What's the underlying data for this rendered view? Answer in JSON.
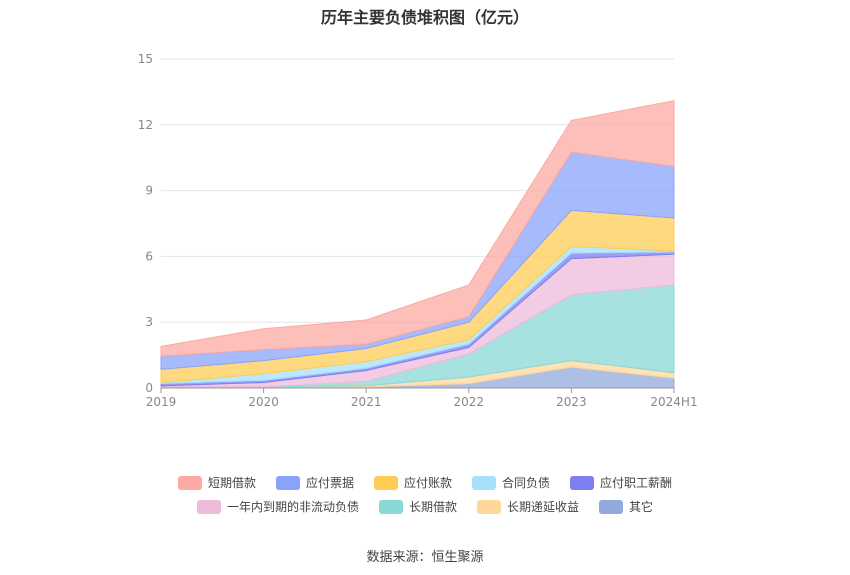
{
  "chart_data": {
    "type": "area",
    "stacked": true,
    "title": "历年主要负债堆积图（亿元）",
    "categories": [
      "2019",
      "2020",
      "2021",
      "2022",
      "2023",
      "2024H1"
    ],
    "ylim": [
      0,
      15
    ],
    "yticks": [
      "0",
      "3",
      "6",
      "9",
      "12",
      "15"
    ],
    "grid": true,
    "legend_position": "bottom",
    "series": [
      {
        "name": "其它",
        "color": "#91a9dc",
        "values": [
          0.05,
          0.05,
          0.05,
          0.2,
          0.95,
          0.45
        ]
      },
      {
        "name": "长期递延收益",
        "color": "#ffd79a",
        "values": [
          0.0,
          0.0,
          0.05,
          0.3,
          0.3,
          0.25
        ]
      },
      {
        "name": "长期借款",
        "color": "#8ad8d6",
        "values": [
          0.0,
          0.0,
          0.2,
          1.05,
          3.0,
          4.0
        ]
      },
      {
        "name": "一年内到期的非流动负债",
        "color": "#eebbdb",
        "values": [
          0.05,
          0.2,
          0.5,
          0.3,
          1.65,
          1.4
        ]
      },
      {
        "name": "应付职工薪酬",
        "color": "#7d7ef0",
        "values": [
          0.1,
          0.1,
          0.1,
          0.15,
          0.25,
          0.1
        ]
      },
      {
        "name": "合同负债",
        "color": "#a6e0fa",
        "values": [
          0.05,
          0.3,
          0.3,
          0.2,
          0.3,
          0.05
        ]
      },
      {
        "name": "应付账款",
        "color": "#ffcc55",
        "values": [
          0.6,
          0.6,
          0.6,
          0.8,
          1.65,
          1.5
        ]
      },
      {
        "name": "应付票据",
        "color": "#8aa3fa",
        "values": [
          0.6,
          0.5,
          0.2,
          0.25,
          2.65,
          2.35
        ]
      },
      {
        "name": "短期借款",
        "color": "#fba9a3",
        "values": [
          0.45,
          0.95,
          1.1,
          1.45,
          1.45,
          3.0
        ]
      }
    ]
  },
  "legend_rows": [
    [
      "短期借款",
      "应付票据",
      "应付账款",
      "合同负债",
      "应付职工薪酬"
    ],
    [
      "一年内到期的非流动负债",
      "长期借款",
      "长期递延收益",
      "其它"
    ]
  ],
  "source": "数据来源：恒生聚源"
}
